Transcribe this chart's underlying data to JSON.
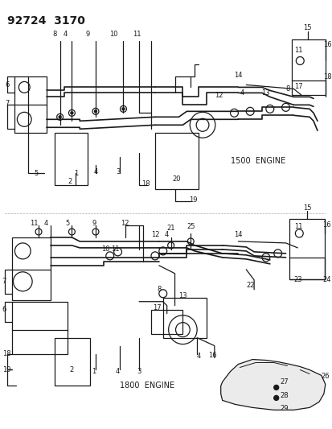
{
  "title": "92724  3170",
  "bg_color": "#ffffff",
  "line_color": "#1a1a1a",
  "fig_width": 4.14,
  "fig_height": 5.33,
  "dpi": 100,
  "top_label": "1500  ENGINE",
  "bottom_label": "1800  ENGINE"
}
